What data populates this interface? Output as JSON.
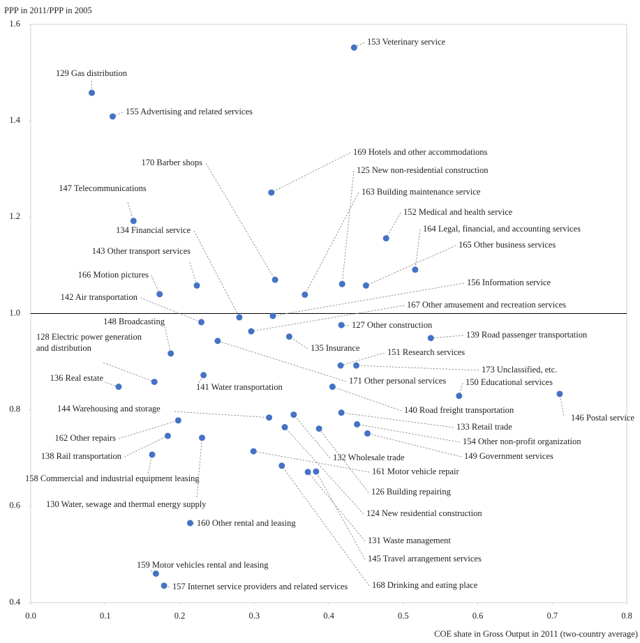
{
  "chart_data": {
    "type": "scatter",
    "ylabel": "PPP in 2011/PPP in 2005",
    "xlabel": "COE shate in Gross Output in 2011 (two-country average)",
    "xlim": [
      0,
      0.8
    ],
    "ylim": [
      0.4,
      1.6
    ],
    "xticks": [
      {
        "value": 0,
        "label": "0.0"
      },
      0.1,
      0.2,
      0.3,
      0.4,
      0.5,
      0.6,
      0.7,
      0.8
    ],
    "yticks": [
      0.4,
      0.6,
      0.8,
      {
        "value": 1,
        "label": "1.0"
      },
      1.2,
      1.4,
      1.6
    ],
    "hline": 1,
    "series": [
      {
        "color": "#4472c4",
        "point_labels": [
          "153 Veterinary service",
          "129 Gas distribution",
          "155 Advertising and related services",
          "169 Hotels and other accommodations",
          "170 Barber shops",
          "125 New non-residential construction",
          "147 Telecommunications",
          "163 Building maintenance service",
          "152 Medical and health service",
          "164 Legal, financial, and accounting services",
          "134 Financial service",
          "165 Other business services",
          "143 Other transport services",
          "166 Motion pictures",
          "156 Information service",
          "142 Air transportation",
          "167 Other amusement and recreation services",
          "148 Broadcasting",
          "127 Other construction",
          "139 Road passenger transportation",
          "128 Electric power generation\nand distribution",
          "135 Insurance",
          "151 Research services",
          "173 Unclassified, etc.",
          "136 Real estate",
          "171 Other personal services",
          "150 Educational services",
          "141 Water transportation",
          "146 Postal service",
          "144 Warehousing and storage",
          "140 Road freight transportation",
          "133 Retail trade",
          "162 Other repairs",
          "154 Other non-profit organization",
          "138 Rail transportation",
          "149 Government services",
          "132 Wholesale trade",
          "161 Motor vehicle repair",
          "158 Commercial and industrial equipment leasing",
          "126 Building repairing",
          "130 Water, sewage and thermal energy supply",
          "124 New residential construction",
          "160 Other rental and leasing",
          "131 Waste management",
          "145 Travel arrangement services",
          "159 Motor vehicles rental and leasing",
          "168 Drinking and eating place",
          "157 Internet service providers and related services"
        ],
        "x": [
          0.434,
          0.082,
          0.11,
          0.323,
          0.328,
          0.418,
          0.138,
          0.368,
          0.477,
          0.516,
          0.28,
          0.45,
          0.223,
          0.173,
          0.325,
          0.229,
          0.296,
          0.188,
          0.417,
          0.537,
          0.166,
          0.347,
          0.416,
          0.437,
          0.118,
          0.251,
          0.575,
          0.232,
          0.71,
          0.32,
          0.405,
          0.417,
          0.198,
          0.438,
          0.184,
          0.452,
          0.353,
          0.299,
          0.163,
          0.387,
          0.23,
          0.341,
          0.214,
          0.372,
          0.383,
          0.168,
          0.337,
          0.179
        ],
        "values": [
          1.552,
          1.458,
          1.409,
          1.251,
          1.07,
          1.061,
          1.192,
          1.039,
          1.156,
          1.091,
          0.992,
          1.058,
          1.058,
          1.04,
          0.995,
          0.982,
          0.963,
          0.917,
          0.976,
          0.949,
          0.858,
          0.952,
          0.892,
          0.892,
          0.848,
          0.943,
          0.829,
          0.872,
          0.833,
          0.784,
          0.848,
          0.794,
          0.778,
          0.77,
          0.746,
          0.751,
          0.79,
          0.714,
          0.707,
          0.761,
          0.742,
          0.764,
          0.565,
          0.671,
          0.672,
          0.46,
          0.684,
          0.435
        ]
      }
    ]
  }
}
